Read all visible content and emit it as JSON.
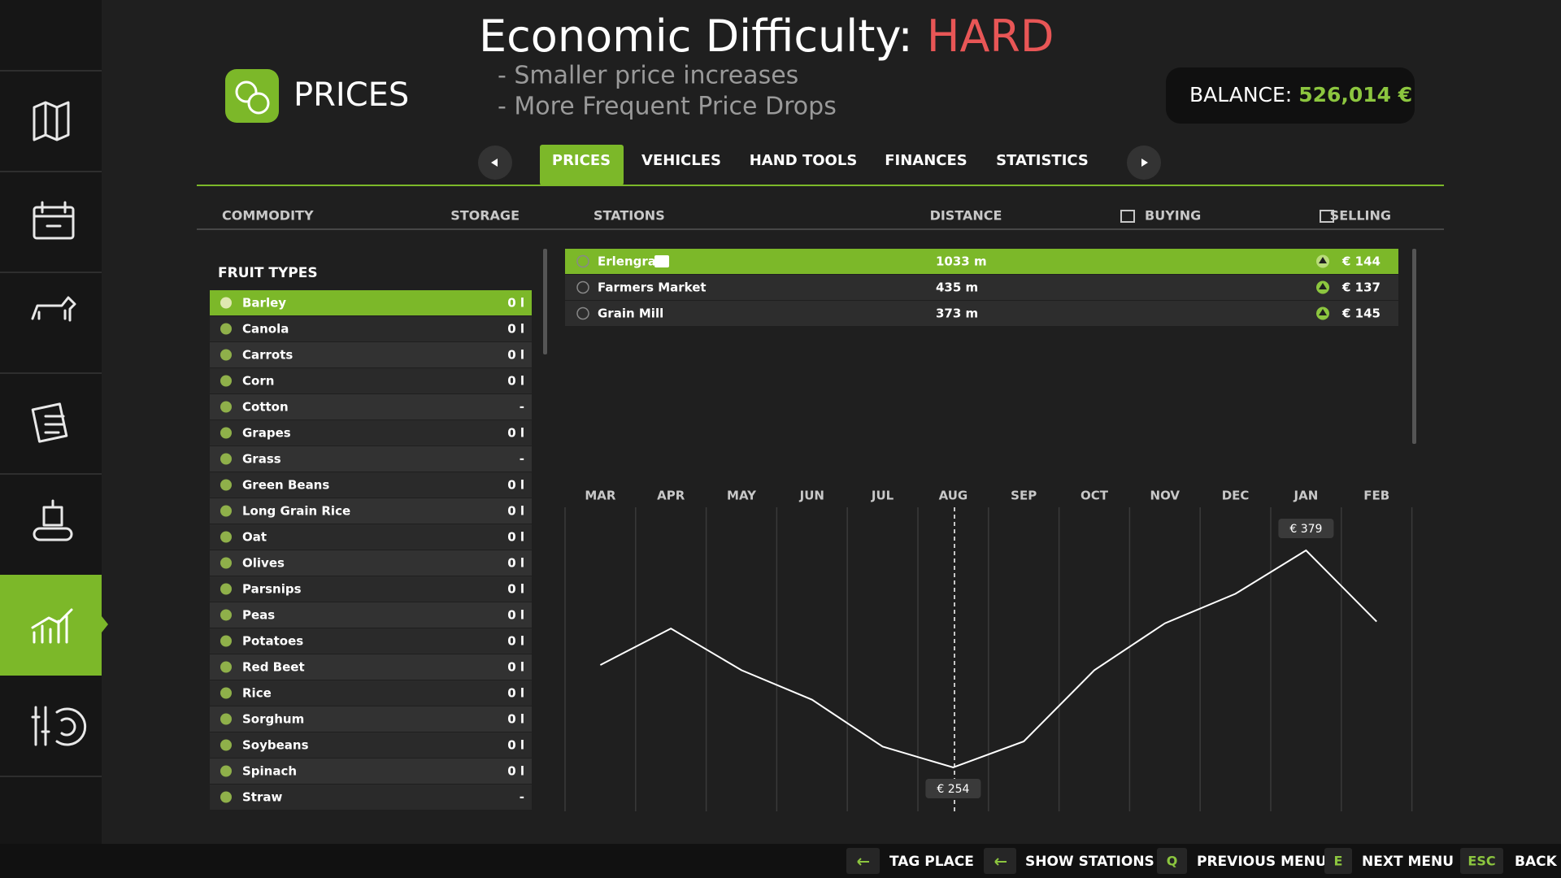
{
  "header": {
    "title": "PRICES",
    "difficulty_label": "Economic Difficulty:",
    "difficulty": "HARD",
    "notes": [
      "- Smaller price increases",
      "- More Frequent Price Drops"
    ],
    "balance_label": "BALANCE:",
    "balance": "526,014 €"
  },
  "tabs": [
    "PRICES",
    "VEHICLES",
    "HAND TOOLS",
    "FINANCES",
    "STATISTICS"
  ],
  "columns": [
    "COMMODITY",
    "STORAGE",
    "STATIONS",
    "DISTANCE",
    "BUYING",
    "SELLING"
  ],
  "commodities": {
    "heading": "FRUIT TYPES",
    "rows": [
      [
        "Barley",
        "0 l"
      ],
      [
        "Canola",
        "0 l"
      ],
      [
        "Carrots",
        "0 l"
      ],
      [
        "Corn",
        "0 l"
      ],
      [
        "Cotton",
        "-"
      ],
      [
        "Grapes",
        "0 l"
      ],
      [
        "Grass",
        "-"
      ],
      [
        "Green Beans",
        "0 l"
      ],
      [
        "Long Grain Rice",
        "0 l"
      ],
      [
        "Oat",
        "0 l"
      ],
      [
        "Olives",
        "0 l"
      ],
      [
        "Parsnips",
        "0 l"
      ],
      [
        "Peas",
        "0 l"
      ],
      [
        "Potatoes",
        "0 l"
      ],
      [
        "Red Beet",
        "0 l"
      ],
      [
        "Rice",
        "0 l"
      ],
      [
        "Sorghum",
        "0 l"
      ],
      [
        "Soybeans",
        "0 l"
      ],
      [
        "Spinach",
        "0 l"
      ],
      [
        "Straw",
        "-"
      ]
    ]
  },
  "stations": {
    "rows": [
      [
        "Erlengrat",
        "1033 m",
        "€ 144"
      ],
      [
        "Farmers Market",
        "435 m",
        "€ 137"
      ],
      [
        "Grain Mill",
        "373 m",
        "€ 145"
      ]
    ]
  },
  "chart_data": {
    "type": "line",
    "categories": [
      "MAR",
      "APR",
      "MAY",
      "JUN",
      "JUL",
      "AUG",
      "SEP",
      "OCT",
      "NOV",
      "DEC",
      "JAN",
      "FEB"
    ],
    "values": [
      313,
      334,
      310,
      293,
      266,
      254,
      269,
      310,
      337,
      354,
      379,
      338
    ],
    "value_labels": [
      null,
      null,
      null,
      null,
      null,
      "€ 254",
      null,
      null,
      null,
      null,
      "€ 379",
      null
    ],
    "color": "#ffffff"
  },
  "footer": {
    "hints": [
      {
        "label": "TAG PLACE"
      },
      {
        "label": "SHOW STATIONS"
      },
      {
        "key": "Q",
        "label": "PREVIOUS MENU"
      },
      {
        "key": "E",
        "label": "NEXT MENU"
      },
      {
        "key": "ESC",
        "label": "BACK"
      }
    ]
  }
}
